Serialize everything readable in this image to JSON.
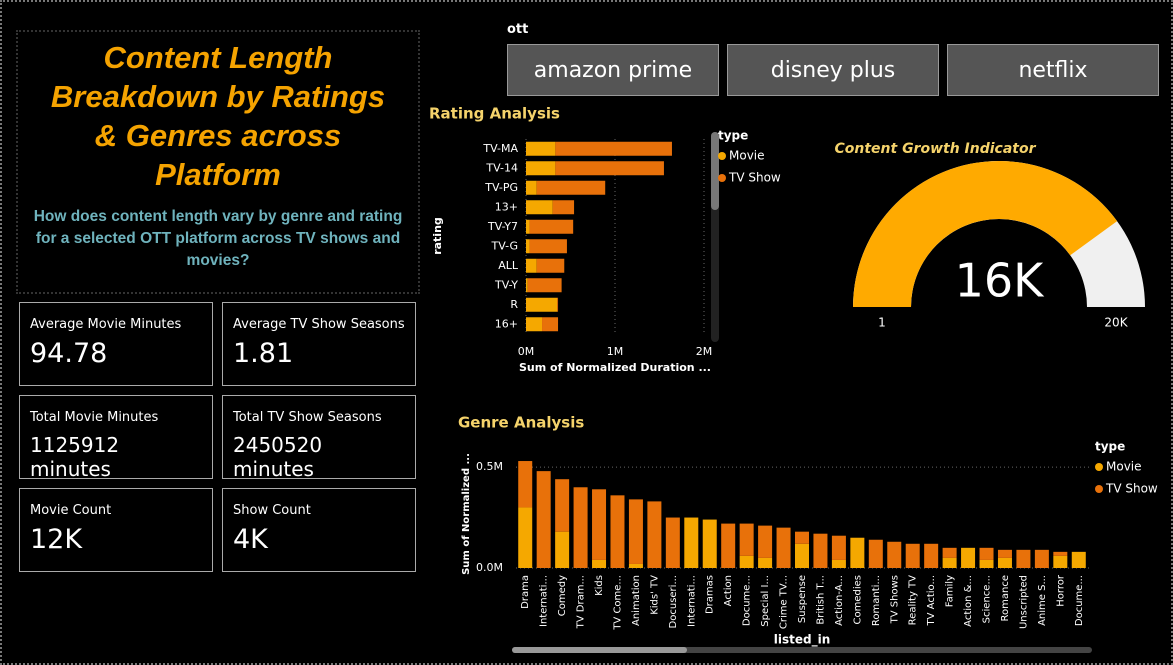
{
  "header": {
    "title": "Content Length Breakdown by Ratings & Genres across Platform",
    "question": "How does content length vary by genre and rating for a selected OTT platform across TV shows and movies?"
  },
  "cards": [
    {
      "label": "Average Movie Minutes",
      "value": 94.78
    },
    {
      "label": "Average TV Show Seasons",
      "value": 1.81
    },
    {
      "label": "Total Movie Minutes",
      "value": "1125912 minutes"
    },
    {
      "label": "Total TV Show Seasons",
      "value": "2450520 minutes"
    },
    {
      "label": "Movie Count",
      "value": "12K"
    },
    {
      "label": "Show Count",
      "value": "4K"
    }
  ],
  "slicer": {
    "title": "ott",
    "options": [
      "amazon prime",
      "disney plus",
      "netflix"
    ]
  },
  "chart_data": [
    {
      "type": "bar",
      "orientation": "horizontal",
      "stacked": true,
      "title": "Rating Analysis",
      "x_label": "Sum of Normalized Duration ...",
      "y_label": "rating",
      "legend_title": "type",
      "categories": [
        "TV-MA",
        "TV-14",
        "TV-PG",
        "13+",
        "TV-Y7",
        "TV-G",
        "ALL",
        "TV-Y",
        "R",
        "16+"
      ],
      "series": [
        {
          "name": "Movie",
          "color": "#F5A800",
          "values": [
            330000,
            330000,
            120000,
            300000,
            40000,
            40000,
            120000,
            20000,
            350000,
            180000
          ]
        },
        {
          "name": "TV Show",
          "color": "#E8710A",
          "values": [
            1310000,
            1220000,
            770000,
            240000,
            490000,
            420000,
            310000,
            380000,
            10000,
            180000
          ]
        }
      ],
      "xlim": [
        0,
        2000000
      ],
      "xticks": [
        {
          "value": 0,
          "label": "0M"
        },
        {
          "value": 1000000,
          "label": "1M"
        },
        {
          "value": 2000000,
          "label": "2M"
        }
      ],
      "grid": true
    },
    {
      "type": "gauge",
      "title": "Content Growth Indicator",
      "value": 16000,
      "value_label": "16K",
      "color": "#FFAA00",
      "track_color": "#F0F0F0",
      "ylim": [
        1,
        20000
      ],
      "yticks": [
        1,
        {
          "value": 20000,
          "label": "20K"
        }
      ]
    },
    {
      "type": "bar",
      "orientation": "vertical",
      "stacked": true,
      "title": "Genre Analysis",
      "x_label": "listed_in",
      "y_label": "Sum of Normalized ...",
      "legend_title": "type",
      "categories": [
        "Drama",
        "Internati...",
        "Comedy",
        "TV Dram...",
        "Kids",
        "TV Come...",
        "Animation",
        "Kids' TV",
        "Docuseri...",
        "Internati...",
        "Dramas",
        "Action",
        "Docume...",
        "Special I...",
        "Crime TV...",
        "Suspense",
        "British T...",
        "Action-A...",
        "Comedies",
        "Romanti...",
        "TV Shows",
        "Reality TV",
        "TV Actio...",
        "Family",
        "Action &...",
        "Science...",
        "Romance",
        "Unscripted",
        "Anime S...",
        "Horror",
        "Docume..."
      ],
      "series": [
        {
          "name": "Movie",
          "color": "#F5A800",
          "values": [
            300000,
            0,
            180000,
            0,
            40000,
            0,
            20000,
            0,
            0,
            250000,
            240000,
            0,
            60000,
            50000,
            0,
            120000,
            0,
            40000,
            150000,
            0,
            0,
            0,
            0,
            50000,
            100000,
            40000,
            50000,
            0,
            0,
            60000,
            80000
          ]
        },
        {
          "name": "TV Show",
          "color": "#E8710A",
          "values": [
            230000,
            480000,
            260000,
            400000,
            350000,
            360000,
            320000,
            330000,
            250000,
            0,
            0,
            220000,
            160000,
            160000,
            200000,
            60000,
            170000,
            120000,
            0,
            140000,
            130000,
            120000,
            120000,
            50000,
            0,
            60000,
            40000,
            90000,
            90000,
            20000,
            0
          ]
        }
      ],
      "ylim": [
        0,
        550000
      ],
      "yticks": [
        {
          "value": 0,
          "label": "0.0M"
        },
        {
          "value": 500000,
          "label": "0.5M"
        }
      ],
      "grid": true
    }
  ]
}
